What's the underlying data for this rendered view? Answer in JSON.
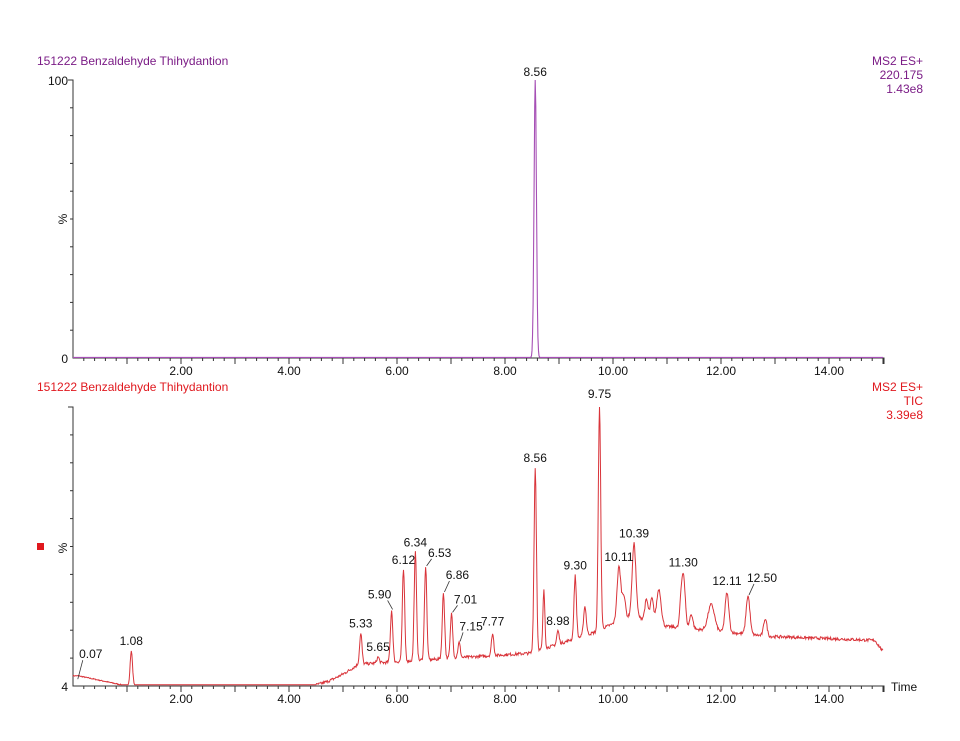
{
  "chart_data": [
    {
      "type": "line",
      "title": "151222 Benzaldehyde Thihydantion",
      "info": [
        "MS2 ES+",
        "220.175",
        "1.43e8"
      ],
      "xlabel": "Time",
      "ylabel": "%",
      "xlim": [
        0,
        15
      ],
      "ylim": [
        0,
        100
      ],
      "y_tick_labels": [
        "0",
        "100"
      ],
      "x_tick_labels": [
        "2.00",
        "4.00",
        "6.00",
        "8.00",
        "10.00",
        "12.00",
        "14.00"
      ],
      "color": "#7b1c86",
      "peaks": [
        {
          "rt": 8.56,
          "height": 100,
          "label": "8.56"
        }
      ]
    },
    {
      "type": "line",
      "title": "151222 Benzaldehyde Thihydantion",
      "info": [
        "MS2 ES+",
        "TIC",
        "3.39e8"
      ],
      "xlabel": "Time",
      "ylabel": "%",
      "xlim": [
        0,
        15
      ],
      "ylim": [
        4,
        100
      ],
      "y_tick_labels": [
        "4"
      ],
      "x_tick_labels": [
        "2.00",
        "4.00",
        "6.00",
        "8.00",
        "10.00",
        "12.00",
        "14.00"
      ],
      "color": "#e0181e",
      "peaks": [
        {
          "rt": 0.07,
          "height": 5,
          "label": "0.07"
        },
        {
          "rt": 1.08,
          "height": 15,
          "label": "1.08"
        },
        {
          "rt": 5.33,
          "height": 21,
          "label": "5.33"
        },
        {
          "rt": 5.65,
          "height": 13,
          "label": "5.65"
        },
        {
          "rt": 5.9,
          "height": 29,
          "label": "5.90"
        },
        {
          "rt": 6.12,
          "height": 43,
          "label": "6.12"
        },
        {
          "rt": 6.34,
          "height": 49,
          "label": "6.34"
        },
        {
          "rt": 6.53,
          "height": 44,
          "label": "6.53"
        },
        {
          "rt": 6.86,
          "height": 35,
          "label": "6.86"
        },
        {
          "rt": 7.01,
          "height": 28,
          "label": "7.01"
        },
        {
          "rt": 7.15,
          "height": 18,
          "label": "7.15"
        },
        {
          "rt": 7.77,
          "height": 21,
          "label": "7.77"
        },
        {
          "rt": 8.56,
          "height": 78,
          "label": "8.56"
        },
        {
          "rt": 8.98,
          "height": 22,
          "label": "8.98"
        },
        {
          "rt": 9.3,
          "height": 41,
          "label": "9.30"
        },
        {
          "rt": 9.75,
          "height": 100,
          "label": "9.75"
        },
        {
          "rt": 10.11,
          "height": 44,
          "label": "10.11"
        },
        {
          "rt": 10.39,
          "height": 52,
          "label": "10.39"
        },
        {
          "rt": 11.3,
          "height": 42,
          "label": "11.30"
        },
        {
          "rt": 12.11,
          "height": 35,
          "label": "12.11"
        },
        {
          "rt": 12.5,
          "height": 34,
          "label": "12.50"
        }
      ]
    }
  ],
  "upper": {
    "title": "151222 Benzaldehyde Thihydantion",
    "info_line1": "MS2 ES+",
    "info_line2": "220.175",
    "info_line3": "1.43e8",
    "y_top": "100",
    "y_bottom": "0",
    "y_label": "%"
  },
  "lower": {
    "title": "151222 Benzaldehyde Thihydantion",
    "info_line1": "MS2 ES+",
    "info_line2": "TIC",
    "info_line3": "3.39e8",
    "y_bottom": "4",
    "y_label": "%",
    "x_label": "Time"
  },
  "marker_color": "#e0181e"
}
